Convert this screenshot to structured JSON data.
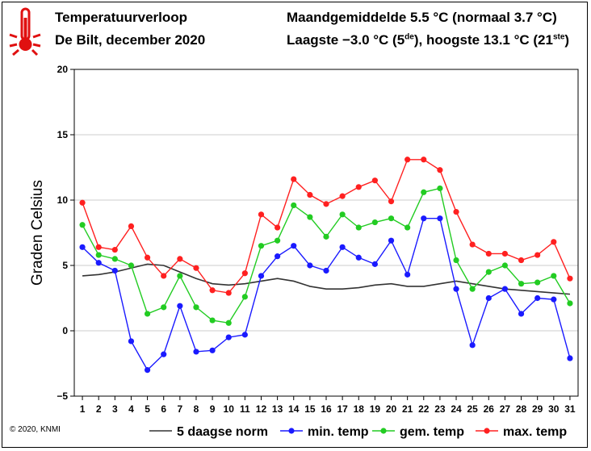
{
  "header": {
    "title": "Temperatuurverloop",
    "subtitle": "De Bilt, december 2020",
    "stat_line1": "Maandgemiddelde 5.5 °C (normaal 3.7 °C)",
    "stat_line2": "Laagste −3.0 °C (5de), hoogste 13.1 °C (21ste)"
  },
  "footer": {
    "copyright": "© 2020, KNMI"
  },
  "icons": {
    "thermometer": "thermometer-icon"
  },
  "colors": {
    "norm": "#333333",
    "min": "#1a1aff",
    "gem": "#22cc22",
    "max": "#ff2020",
    "grid": "#cccccc"
  },
  "chart_data": {
    "type": "line",
    "title": "Temperatuurverloop",
    "subtitle": "De Bilt, december 2020",
    "xlabel": "",
    "ylabel": "Graden Celsius",
    "ylim": [
      -5,
      20
    ],
    "yticks": [
      -5,
      0,
      5,
      10,
      15,
      20
    ],
    "x": [
      1,
      2,
      3,
      4,
      5,
      6,
      7,
      8,
      9,
      10,
      11,
      12,
      13,
      14,
      15,
      16,
      17,
      18,
      19,
      20,
      21,
      22,
      23,
      24,
      25,
      26,
      27,
      28,
      29,
      30,
      31
    ],
    "grid": true,
    "legend_position": "bottom",
    "series": [
      {
        "name": "5 daagse norm",
        "marker": false,
        "values": [
          4.2,
          4.3,
          4.5,
          4.8,
          5.1,
          5.0,
          4.5,
          4.0,
          3.6,
          3.5,
          3.6,
          3.8,
          4.0,
          3.8,
          3.4,
          3.2,
          3.2,
          3.3,
          3.5,
          3.6,
          3.4,
          3.4,
          3.6,
          3.8,
          3.6,
          3.4,
          3.2,
          3.1,
          3.0,
          2.9,
          2.8
        ]
      },
      {
        "name": "min. temp",
        "marker": true,
        "values": [
          6.4,
          5.2,
          4.6,
          -0.8,
          -3.0,
          -1.8,
          1.9,
          -1.6,
          -1.5,
          -0.5,
          -0.3,
          4.2,
          5.7,
          6.5,
          5.0,
          4.6,
          6.4,
          5.6,
          5.1,
          6.9,
          4.3,
          8.6,
          8.6,
          3.2,
          -1.1,
          2.5,
          3.2,
          1.3,
          2.5,
          2.4,
          -2.1
        ]
      },
      {
        "name": "gem. temp",
        "marker": true,
        "values": [
          8.1,
          5.8,
          5.5,
          5.0,
          1.3,
          1.8,
          4.2,
          1.8,
          0.8,
          0.6,
          2.6,
          6.5,
          6.9,
          9.6,
          8.7,
          7.2,
          8.9,
          7.9,
          8.3,
          8.6,
          7.9,
          10.6,
          10.9,
          5.4,
          3.2,
          4.5,
          5.0,
          3.6,
          3.7,
          4.2,
          2.1
        ]
      },
      {
        "name": "max. temp",
        "marker": true,
        "values": [
          9.8,
          6.4,
          6.2,
          8.0,
          5.6,
          4.2,
          5.5,
          4.8,
          3.1,
          2.9,
          4.4,
          8.9,
          7.9,
          11.6,
          10.4,
          9.7,
          10.3,
          11.0,
          11.5,
          9.9,
          13.1,
          13.1,
          12.3,
          9.1,
          6.6,
          5.9,
          5.9,
          5.4,
          5.8,
          6.8,
          4.0
        ]
      }
    ]
  }
}
